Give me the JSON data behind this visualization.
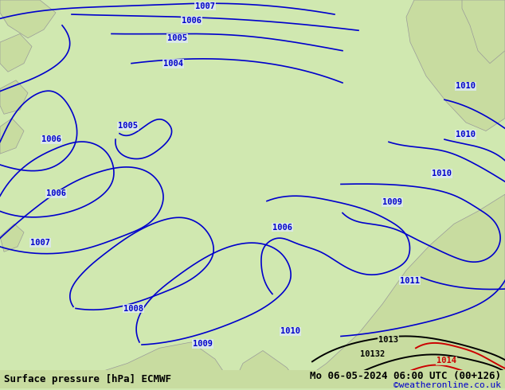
{
  "title_left": "Surface pressure [hPa] ECMWF",
  "title_right": "Mo 06-05-2024 06:00 UTC (00+126)",
  "credit": "©weatheronline.co.uk",
  "bg_color": "#d0e8b0",
  "ocean_color": "#dce8f0",
  "land_color": "#c8dca0",
  "contour_color_blue": "#0000cc",
  "contour_color_black": "#000000",
  "contour_color_red": "#cc0000",
  "text_color_bottom_left": "#000000",
  "text_color_bottom_right": "#000000",
  "credit_color": "#0000cc",
  "bottom_bar_color": "#c8dca0",
  "figsize": [
    6.34,
    4.9
  ],
  "dpi": 100,
  "font_size_title": 9,
  "font_size_labels": 7.5,
  "font_size_credit": 8
}
